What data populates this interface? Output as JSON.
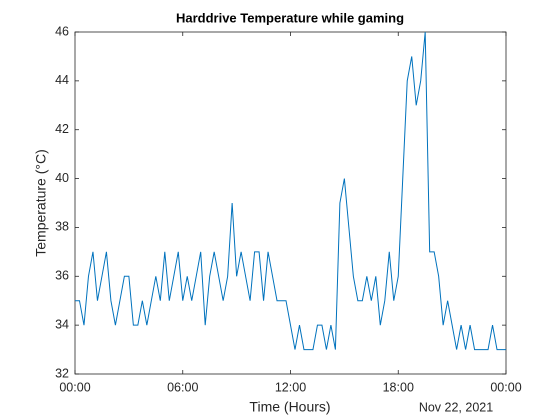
{
  "chart_data": {
    "type": "line",
    "title": "Harddrive Temperature while gaming",
    "xlabel": "Time (Hours)",
    "ylabel": "Temperature (°C)",
    "date_label": "Nov 22, 2021",
    "x": [
      0,
      0.25,
      0.5,
      0.75,
      1,
      1.25,
      1.5,
      1.75,
      2,
      2.25,
      2.5,
      2.75,
      3,
      3.25,
      3.5,
      3.75,
      4,
      4.25,
      4.5,
      4.75,
      5,
      5.25,
      5.5,
      5.75,
      6,
      6.25,
      6.5,
      6.75,
      7,
      7.25,
      7.5,
      7.75,
      8,
      8.25,
      8.5,
      8.75,
      9,
      9.25,
      9.5,
      9.75,
      10,
      10.25,
      10.5,
      10.75,
      11,
      11.25,
      11.5,
      11.75,
      12,
      12.25,
      12.5,
      12.75,
      13,
      13.25,
      13.5,
      13.75,
      14,
      14.25,
      14.5,
      14.75,
      15,
      15.25,
      15.5,
      15.75,
      16,
      16.25,
      16.5,
      16.75,
      17,
      17.25,
      17.5,
      17.75,
      18,
      18.25,
      18.5,
      18.75,
      19,
      19.25,
      19.5,
      19.75,
      20,
      20.25,
      20.5,
      20.75,
      21,
      21.25,
      21.5,
      21.75,
      22,
      22.25,
      22.5,
      22.75,
      23,
      23.25,
      23.5,
      23.75,
      24
    ],
    "series": [
      {
        "name": "Temperature",
        "color": "#0072bd",
        "values": [
          35,
          35,
          34,
          36,
          37,
          35,
          36,
          37,
          35,
          34,
          35,
          36,
          36,
          34,
          34,
          35,
          34,
          35,
          36,
          35,
          37,
          35,
          36,
          37,
          35,
          36,
          35,
          36,
          37,
          34,
          36,
          37,
          36,
          35,
          36,
          39,
          36,
          37,
          36,
          35,
          37,
          37,
          35,
          37,
          36,
          35,
          35,
          35,
          34,
          33,
          34,
          33,
          33,
          33,
          34,
          34,
          33,
          34,
          33,
          39,
          40,
          38,
          36,
          35,
          35,
          36,
          35,
          36,
          34,
          35,
          37,
          35,
          36,
          40,
          44,
          45,
          43,
          44,
          46,
          37,
          37,
          36,
          34,
          35,
          34,
          33,
          34,
          33,
          34,
          33,
          33,
          33,
          33,
          34,
          33,
          33,
          33
        ]
      }
    ],
    "xlim": [
      0,
      24
    ],
    "xticks": [
      {
        "value": 0,
        "label": "00:00"
      },
      {
        "value": 6,
        "label": "06:00"
      },
      {
        "value": 12,
        "label": "12:00"
      },
      {
        "value": 18,
        "label": "18:00"
      },
      {
        "value": 24,
        "label": "00:00"
      }
    ],
    "ylim": [
      32,
      46
    ],
    "yticks": [
      32,
      34,
      36,
      38,
      40,
      42,
      44,
      46
    ],
    "grid": false
  }
}
